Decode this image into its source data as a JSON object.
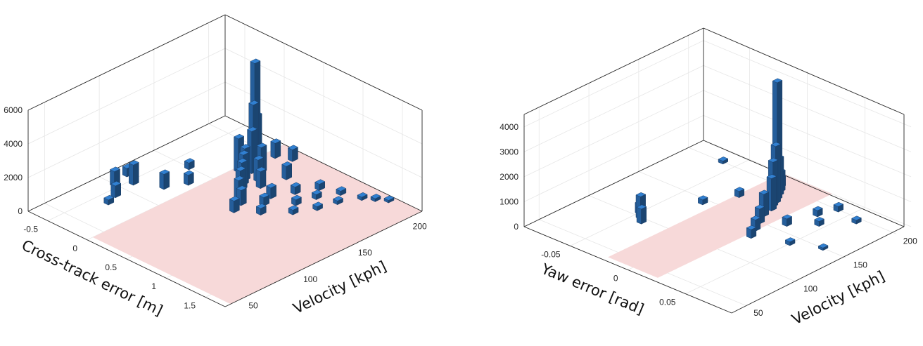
{
  "chart_data": [
    {
      "type": "bar3d",
      "xlabel": "Cross-track error [m]",
      "ylabel": "Velocity [kph]",
      "zlabel": "",
      "x_ticks": [
        "-0.5",
        "0",
        "0.5",
        "1",
        "1.5"
      ],
      "y_ticks": [
        "50",
        "100",
        "150",
        "200"
      ],
      "z_ticks": [
        "0",
        "2000",
        "4000",
        "6000"
      ],
      "xlim": [
        -0.75,
        1.75
      ],
      "ylim": [
        35,
        215
      ],
      "zlim": [
        0,
        6000
      ],
      "grid": true,
      "bar_color": "#2b6fb6",
      "floor_band_color": "#f7d9d9",
      "bars": [
        {
          "x": 0.05,
          "y": 185,
          "z": 6000
        },
        {
          "x": 0.1,
          "y": 180,
          "z": 3800
        },
        {
          "x": 0.0,
          "y": 190,
          "z": 2600
        },
        {
          "x": 0.15,
          "y": 175,
          "z": 2500
        },
        {
          "x": 0.05,
          "y": 170,
          "z": 2000
        },
        {
          "x": 0.2,
          "y": 165,
          "z": 1900
        },
        {
          "x": 0.25,
          "y": 160,
          "z": 1800
        },
        {
          "x": 0.3,
          "y": 155,
          "z": 1600
        },
        {
          "x": 0.2,
          "y": 180,
          "z": 1500
        },
        {
          "x": 0.35,
          "y": 150,
          "z": 1400
        },
        {
          "x": 0.3,
          "y": 170,
          "z": 1300
        },
        {
          "x": 0.4,
          "y": 145,
          "z": 1100
        },
        {
          "x": 0.4,
          "y": 165,
          "z": 1000
        },
        {
          "x": 0.5,
          "y": 140,
          "z": 900
        },
        {
          "x": 0.45,
          "y": 185,
          "z": 800
        },
        {
          "x": 0.55,
          "y": 130,
          "z": 700
        },
        {
          "x": 0.6,
          "y": 160,
          "z": 650
        },
        {
          "x": -0.45,
          "y": 110,
          "z": 1200
        },
        {
          "x": -0.55,
          "y": 100,
          "z": 900
        },
        {
          "x": -0.4,
          "y": 90,
          "z": 700
        },
        {
          "x": -0.6,
          "y": 115,
          "z": 500
        },
        {
          "x": -0.2,
          "y": 120,
          "z": 900
        },
        {
          "x": -0.1,
          "y": 135,
          "z": 600
        },
        {
          "x": 0.65,
          "y": 150,
          "z": 500
        },
        {
          "x": 0.7,
          "y": 175,
          "z": 450
        },
        {
          "x": 0.75,
          "y": 140,
          "z": 400
        },
        {
          "x": 0.8,
          "y": 190,
          "z": 380
        },
        {
          "x": 0.85,
          "y": 165,
          "z": 350
        },
        {
          "x": 0.9,
          "y": 180,
          "z": 300
        },
        {
          "x": 0.95,
          "y": 155,
          "z": 280
        },
        {
          "x": 1.0,
          "y": 195,
          "z": 260
        },
        {
          "x": 1.05,
          "y": 170,
          "z": 240
        },
        {
          "x": 1.1,
          "y": 185,
          "z": 220
        },
        {
          "x": 1.2,
          "y": 200,
          "z": 200
        },
        {
          "x": 1.3,
          "y": 205,
          "z": 180
        },
        {
          "x": 1.4,
          "y": 210,
          "z": 150
        },
        {
          "x": 0.1,
          "y": 200,
          "z": 900
        },
        {
          "x": 0.25,
          "y": 205,
          "z": 700
        },
        {
          "x": -0.3,
          "y": 150,
          "z": 400
        },
        {
          "x": -0.35,
          "y": 80,
          "z": 300
        }
      ]
    },
    {
      "type": "bar3d",
      "xlabel": "Yaw error [rad]",
      "ylabel": "Velocity [kph]",
      "zlabel": "",
      "x_ticks": [
        "-0.05",
        "0",
        "0.05"
      ],
      "y_ticks": [
        "50",
        "100",
        "150",
        "200"
      ],
      "z_ticks": [
        "0",
        "1000",
        "2000",
        "3000",
        "4000"
      ],
      "xlim": [
        -0.09,
        0.09
      ],
      "ylim": [
        35,
        215
      ],
      "zlim": [
        0,
        4500
      ],
      "grid": true,
      "bar_color": "#2b6fb6",
      "floor_band_color": "#f7d9d9",
      "bars": [
        {
          "x": 0.0,
          "y": 185,
          "z": 4700
        },
        {
          "x": 0.003,
          "y": 180,
          "z": 2300
        },
        {
          "x": 0.005,
          "y": 175,
          "z": 1800
        },
        {
          "x": -0.003,
          "y": 190,
          "z": 1500
        },
        {
          "x": 0.008,
          "y": 170,
          "z": 1300
        },
        {
          "x": 0.01,
          "y": 160,
          "z": 900
        },
        {
          "x": -0.006,
          "y": 195,
          "z": 800
        },
        {
          "x": 0.015,
          "y": 150,
          "z": 600
        },
        {
          "x": 0.02,
          "y": 140,
          "z": 450
        },
        {
          "x": -0.01,
          "y": 200,
          "z": 400
        },
        {
          "x": -0.045,
          "y": 100,
          "z": 900
        },
        {
          "x": -0.04,
          "y": 95,
          "z": 600
        },
        {
          "x": -0.05,
          "y": 105,
          "z": 400
        },
        {
          "x": 0.025,
          "y": 130,
          "z": 350
        },
        {
          "x": 0.03,
          "y": 160,
          "z": 300
        },
        {
          "x": 0.035,
          "y": 185,
          "z": 250
        },
        {
          "x": 0.04,
          "y": 200,
          "z": 220
        },
        {
          "x": 0.045,
          "y": 175,
          "z": 200
        },
        {
          "x": -0.02,
          "y": 170,
          "z": 250
        },
        {
          "x": -0.03,
          "y": 145,
          "z": 200
        },
        {
          "x": 0.05,
          "y": 140,
          "z": 150
        },
        {
          "x": 0.06,
          "y": 195,
          "z": 150
        },
        {
          "x": -0.06,
          "y": 200,
          "z": 120
        },
        {
          "x": 0.07,
          "y": 150,
          "z": 100
        }
      ]
    }
  ]
}
